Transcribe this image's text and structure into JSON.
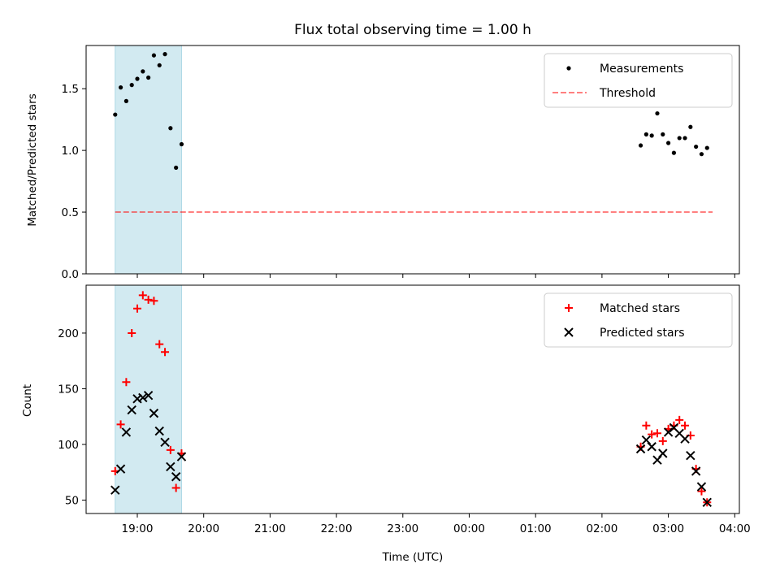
{
  "title": "Flux total observing time = 1.00 h",
  "colors": {
    "shade": "#add8e6",
    "threshold": "#ff0000",
    "measurement": "#000000",
    "matched": "#ff0000",
    "predicted": "#000000"
  },
  "chart_data": [
    {
      "type": "scatter",
      "ylabel": "Matched/Predicted stars",
      "ylim": [
        0,
        1.85
      ],
      "yticks": [
        "0.0",
        "0.5",
        "1.0",
        "1.5"
      ],
      "shaded_span_x": [
        "18:40",
        "19:40"
      ],
      "legend": {
        "placement": "top-right",
        "entries": [
          "Measurements",
          "Threshold"
        ]
      },
      "threshold": {
        "name": "Threshold",
        "y": 0.5,
        "x_range": [
          "18:40",
          "03:40"
        ]
      },
      "series": [
        {
          "name": "Measurements",
          "points": [
            [
              "18:40",
              1.29
            ],
            [
              "18:45",
              1.51
            ],
            [
              "18:50",
              1.4
            ],
            [
              "18:55",
              1.53
            ],
            [
              "19:00",
              1.58
            ],
            [
              "19:05",
              1.64
            ],
            [
              "19:10",
              1.59
            ],
            [
              "19:15",
              1.77
            ],
            [
              "19:20",
              1.69
            ],
            [
              "19:25",
              1.78
            ],
            [
              "19:30",
              1.18
            ],
            [
              "19:35",
              0.86
            ],
            [
              "19:40",
              1.05
            ],
            [
              "02:35",
              1.04
            ],
            [
              "02:40",
              1.13
            ],
            [
              "02:45",
              1.12
            ],
            [
              "02:50",
              1.3
            ],
            [
              "02:55",
              1.13
            ],
            [
              "03:00",
              1.06
            ],
            [
              "03:05",
              0.98
            ],
            [
              "03:10",
              1.1
            ],
            [
              "03:15",
              1.1
            ],
            [
              "03:20",
              1.19
            ],
            [
              "03:25",
              1.03
            ],
            [
              "03:30",
              0.97
            ],
            [
              "03:35",
              1.02
            ]
          ]
        }
      ]
    },
    {
      "type": "scatter",
      "xlabel": "Time (UTC)",
      "ylabel": "Count",
      "ylim": [
        38,
        243
      ],
      "yticks": [
        "50",
        "100",
        "150",
        "200"
      ],
      "xticks": [
        "19:00",
        "20:00",
        "21:00",
        "22:00",
        "23:00",
        "00:00",
        "01:00",
        "02:00",
        "03:00",
        "04:00"
      ],
      "shaded_span_x": [
        "18:40",
        "19:40"
      ],
      "legend": {
        "placement": "top-right",
        "entries": [
          "Matched stars",
          "Predicted stars"
        ]
      },
      "series": [
        {
          "name": "Matched stars",
          "points": [
            [
              "18:40",
              76
            ],
            [
              "18:45",
              118
            ],
            [
              "18:50",
              156
            ],
            [
              "18:55",
              200
            ],
            [
              "19:00",
              222
            ],
            [
              "19:05",
              234
            ],
            [
              "19:10",
              230
            ],
            [
              "19:15",
              229
            ],
            [
              "19:20",
              190
            ],
            [
              "19:25",
              183
            ],
            [
              "19:30",
              95
            ],
            [
              "19:35",
              61
            ],
            [
              "19:40",
              92
            ],
            [
              "02:35",
              98
            ],
            [
              "02:40",
              117
            ],
            [
              "02:45",
              109
            ],
            [
              "02:50",
              110
            ],
            [
              "02:55",
              103
            ],
            [
              "03:00",
              114
            ],
            [
              "03:05",
              117
            ],
            [
              "03:10",
              122
            ],
            [
              "03:15",
              117
            ],
            [
              "03:20",
              108
            ],
            [
              "03:25",
              78
            ],
            [
              "03:30",
              58
            ],
            [
              "03:35",
              48
            ]
          ]
        },
        {
          "name": "Predicted stars",
          "points": [
            [
              "18:40",
              59
            ],
            [
              "18:45",
              78
            ],
            [
              "18:50",
              111
            ],
            [
              "18:55",
              131
            ],
            [
              "19:00",
              141
            ],
            [
              "19:05",
              142
            ],
            [
              "19:10",
              144
            ],
            [
              "19:15",
              128
            ],
            [
              "19:20",
              112
            ],
            [
              "19:25",
              102
            ],
            [
              "19:30",
              80
            ],
            [
              "19:35",
              71
            ],
            [
              "19:40",
              89
            ],
            [
              "02:35",
              96
            ],
            [
              "02:40",
              104
            ],
            [
              "02:45",
              98
            ],
            [
              "02:50",
              86
            ],
            [
              "02:55",
              92
            ],
            [
              "03:00",
              111
            ],
            [
              "03:05",
              115
            ],
            [
              "03:10",
              110
            ],
            [
              "03:15",
              105
            ],
            [
              "03:20",
              90
            ],
            [
              "03:25",
              76
            ],
            [
              "03:30",
              62
            ],
            [
              "03:35",
              48
            ]
          ]
        }
      ]
    }
  ]
}
